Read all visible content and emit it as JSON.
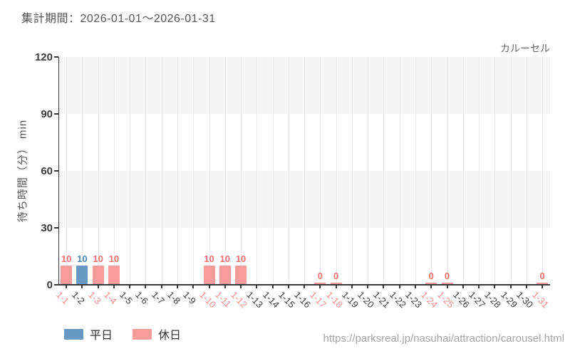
{
  "header": {
    "title": "集計期間：2026-01-01～2026-01-31",
    "attraction_label": "カルーセル"
  },
  "footer": {
    "url": "https://parksreal.jp/nasuhai/attraction/carousel.html"
  },
  "legend": {
    "items": [
      {
        "label": "平日",
        "color": "#6899c5"
      },
      {
        "label": "休日",
        "color": "#f89b9b"
      }
    ]
  },
  "colors": {
    "weekday_bar": "#6899c5",
    "holiday_bar": "#f89b9b",
    "weekday_value_text": "#4e86ba",
    "holiday_value_text": "#f26e6e",
    "holiday_tick_text": "#f48a8a",
    "normal_tick_text": "#3d3d3d",
    "band_gray": "#f5f5f5",
    "band_white": "#ffffff",
    "gridline": "#e6e6e6",
    "spine": "#3a3a3a"
  },
  "chart_data": {
    "type": "bar",
    "title": "カルーセル",
    "xlabel": "",
    "ylabel": "待ち時間（分） min",
    "ylim": [
      0,
      120
    ],
    "yticks": [
      0,
      30,
      60,
      90,
      120
    ],
    "grid": "vertical-per-category, alternating horizontal bands",
    "legend_position": "bottom-left",
    "categories": [
      "1-1",
      "1-2",
      "1-3",
      "1-4",
      "1-5",
      "1-6",
      "1-7",
      "1-8",
      "1-9",
      "1-10",
      "1-11",
      "1-12",
      "1-13",
      "1-14",
      "1-15",
      "1-16",
      "1-17",
      "1-18",
      "1-19",
      "1-20",
      "1-21",
      "1-22",
      "1-23",
      "1-24",
      "1-25",
      "1-26",
      "1-27",
      "1-28",
      "1-29",
      "1-30",
      "1-31"
    ],
    "series": [
      {
        "name": "平日",
        "values": [
          null,
          10,
          null,
          null,
          null,
          null,
          null,
          null,
          null,
          null,
          null,
          null,
          null,
          null,
          null,
          null,
          null,
          null,
          null,
          null,
          null,
          null,
          null,
          null,
          null,
          null,
          null,
          null,
          null,
          null,
          null
        ]
      },
      {
        "name": "休日",
        "values": [
          10,
          null,
          10,
          10,
          null,
          null,
          null,
          null,
          null,
          10,
          10,
          10,
          null,
          null,
          null,
          null,
          0,
          0,
          null,
          null,
          null,
          null,
          null,
          0,
          0,
          null,
          null,
          null,
          null,
          null,
          0
        ]
      }
    ],
    "days": [
      {
        "label": "1-1",
        "value": 10,
        "type": "holiday"
      },
      {
        "label": "1-2",
        "value": 10,
        "type": "weekday"
      },
      {
        "label": "1-3",
        "value": 10,
        "type": "holiday"
      },
      {
        "label": "1-4",
        "value": 10,
        "type": "holiday"
      },
      {
        "label": "1-5",
        "value": null,
        "type": "none"
      },
      {
        "label": "1-6",
        "value": null,
        "type": "none"
      },
      {
        "label": "1-7",
        "value": null,
        "type": "none"
      },
      {
        "label": "1-8",
        "value": null,
        "type": "none"
      },
      {
        "label": "1-9",
        "value": null,
        "type": "none"
      },
      {
        "label": "1-10",
        "value": 10,
        "type": "holiday"
      },
      {
        "label": "1-11",
        "value": 10,
        "type": "holiday"
      },
      {
        "label": "1-12",
        "value": 10,
        "type": "holiday"
      },
      {
        "label": "1-13",
        "value": null,
        "type": "none"
      },
      {
        "label": "1-14",
        "value": null,
        "type": "none"
      },
      {
        "label": "1-15",
        "value": null,
        "type": "none"
      },
      {
        "label": "1-16",
        "value": null,
        "type": "none"
      },
      {
        "label": "1-17",
        "value": 0,
        "type": "holiday"
      },
      {
        "label": "1-18",
        "value": 0,
        "type": "holiday"
      },
      {
        "label": "1-19",
        "value": null,
        "type": "none"
      },
      {
        "label": "1-20",
        "value": null,
        "type": "none"
      },
      {
        "label": "1-21",
        "value": null,
        "type": "none"
      },
      {
        "label": "1-22",
        "value": null,
        "type": "none"
      },
      {
        "label": "1-23",
        "value": null,
        "type": "none"
      },
      {
        "label": "1-24",
        "value": 0,
        "type": "holiday"
      },
      {
        "label": "1-25",
        "value": 0,
        "type": "holiday"
      },
      {
        "label": "1-26",
        "value": null,
        "type": "none"
      },
      {
        "label": "1-27",
        "value": null,
        "type": "none"
      },
      {
        "label": "1-28",
        "value": null,
        "type": "none"
      },
      {
        "label": "1-29",
        "value": null,
        "type": "none"
      },
      {
        "label": "1-30",
        "value": null,
        "type": "none"
      },
      {
        "label": "1-31",
        "value": 0,
        "type": "holiday"
      }
    ]
  }
}
